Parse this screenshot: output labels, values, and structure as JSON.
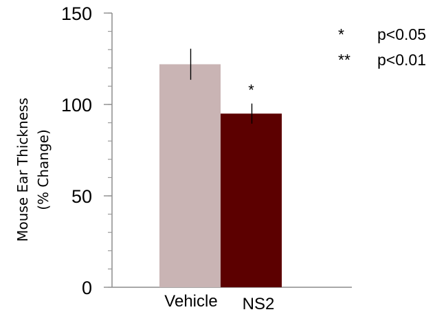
{
  "chart_data": {
    "type": "bar",
    "categories": [
      "Vehicle",
      "NS2"
    ],
    "values": [
      122,
      95
    ],
    "error": [
      8.5,
      5.5
    ],
    "colors": [
      "#c9b4b4",
      "#5c0000"
    ],
    "significance": [
      "",
      "*"
    ],
    "ylabel_line1": "Mouse Ear Thickness",
    "ylabel_line2": "(% Change)",
    "ylim": [
      0,
      150
    ],
    "yticks": [
      0,
      50,
      100,
      150
    ],
    "minor_tick_step": 10,
    "grid": false,
    "legend": {
      "placement": "top-right",
      "entries": [
        {
          "symbol": "*",
          "text": "p<0.05"
        },
        {
          "symbol": "**",
          "text": "p<0.01"
        }
      ]
    }
  }
}
